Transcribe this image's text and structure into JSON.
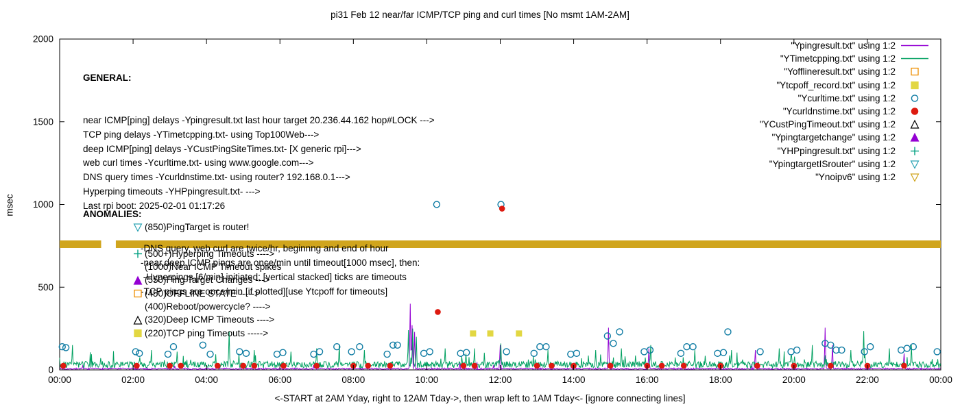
{
  "colors": {
    "purple": "#9400d3",
    "green": "#00a060",
    "orange": "#ef8f00",
    "yellow": "#e2d742",
    "blue": "#0e7ba3",
    "red": "#dd1a10",
    "black": "#000000",
    "teal": "#00a080",
    "cyan": "#2ba3b4",
    "gold": "#d0a51d"
  },
  "general": {
    "heading": "GENERAL:",
    "lines": [
      "near ICMP[ping] delays -Ypingresult.txt last hour target 20.236.44.162 hop#LOCK --->",
      "TCP ping delays -YTimetcpping.txt- using Top100Web--->",
      "deep ICMP[ping] delays -YCustPingSiteTimes.txt- [X generic rpi]--->",
      "web curl times -Ycurltime.txt- using www.google.com--->",
      "DNS query times -Ycurldnstime.txt- using router? 192.168.0.1--->",
      "Hyperping timeouts -YHPpingresult.txt- --->",
      "Last rpi boot: 2025-02-01 01:17:26"
    ],
    "indented_lines": [
      "-DNS query, web curl are twice/hr, beginnng and end of hour",
      "-near,deep ICMP pings are once/min until timeout[1000 msec], then:",
      " -Hyperpings [6/min] initiated; [vertical stacked] ticks are timeouts",
      "-TCP pings are once/min [if plotted][use Ytcpoff for timeouts]"
    ]
  },
  "anomalies": {
    "heading": "ANOMALIES:",
    "items": [
      {
        "marker": "triangle-down-open-teal",
        "label": "(850)PingTarget is router!"
      },
      {
        "marker": "none",
        "label": ""
      },
      {
        "marker": "plus-teal",
        "label": "(500+)Hyperping Timeouts ---->"
      },
      {
        "marker": "none",
        "label": "(1000)Near ICMP Timeout spikes"
      },
      {
        "marker": "triangle-filled-purple",
        "label": "(550)Ping Target Changes --->"
      },
      {
        "marker": "square-open-orange",
        "label": "(450)OFFLINE STATE ----->"
      },
      {
        "marker": "none",
        "label": "(400)Reboot/powercycle? ---->"
      },
      {
        "marker": "triangle-open-black",
        "label": "(320)Deep ICMP Timeouts ---->"
      },
      {
        "marker": "square-filled-yellow",
        "label": "(220)TCP ping Timeouts ----->"
      }
    ]
  },
  "legend": {
    "entries": [
      {
        "label": "\"Ypingresult.txt\" using 1:2",
        "marker": "line-purple"
      },
      {
        "label": "\"YTimetcpping.txt\" using 1:2",
        "marker": "line-green"
      },
      {
        "label": "\"Yofflineresult.txt\" using 1:2",
        "marker": "square-open-orange"
      },
      {
        "label": "\"Ytcpoff_record.txt\" using 1:2",
        "marker": "square-filled-yellow"
      },
      {
        "label": "\"Ycurltime.txt\" using 1:2",
        "marker": "circle-open-blue"
      },
      {
        "label": "\"Ycurldnstime.txt\" using 1:2",
        "marker": "circle-filled-red"
      },
      {
        "label": "\"YCustPingTimeout.txt\" using 1:2",
        "marker": "triangle-open-black"
      },
      {
        "label": "\"Ypingtargetchange\" using 1:2",
        "marker": "triangle-filled-purple"
      },
      {
        "label": "\"YHPpingresult.txt\" using 1:2",
        "marker": "plus-teal"
      },
      {
        "label": "\"YpingtargetISrouter\" using 1:2",
        "marker": "triangle-down-open-teal"
      },
      {
        "label": "\"Ynoipv6\" using 1:2",
        "marker": "triangle-down-open-gold"
      }
    ]
  },
  "chart_data": {
    "type": "line+scatter",
    "title": "pi31 Feb 12  near/far ICMP/TCP ping and curl times [No msmt 1AM-2AM]",
    "xlabel": "<-START at 2AM Yday, right to 12AM Tday->, then wrap left to 1AM Tday<- [ignore connecting lines]",
    "ylabel": "msec",
    "ylim": [
      0,
      2000
    ],
    "y_ticks": [
      0,
      500,
      1000,
      1500,
      2000
    ],
    "x_tick_hours": [
      0,
      2,
      4,
      6,
      8,
      10,
      12,
      14,
      16,
      18,
      20,
      22,
      24
    ],
    "x_ticks": [
      "00:00",
      "02:00",
      "04:00",
      "06:00",
      "08:00",
      "10:00",
      "12:00",
      "14:00",
      "16:00",
      "18:00",
      "20:00",
      "22:00",
      "00:00"
    ],
    "series": [
      {
        "name": "Ynoipv6",
        "type": "band",
        "color_key": "gold",
        "value": 760,
        "segments": [
          [
            0,
            1.13
          ],
          [
            1.53,
            24
          ]
        ]
      },
      {
        "name": "Ypingresult",
        "type": "line",
        "color_key": "purple",
        "baseline": 7,
        "jitter": 5,
        "seed": 7,
        "burst_prob": 0.008,
        "burst_amp": 40,
        "spikes": [
          [
            9.55,
            400
          ],
          [
            9.6,
            270
          ],
          [
            9.67,
            230
          ],
          [
            12.0,
            150
          ],
          [
            14.95,
            255
          ],
          [
            16.05,
            130
          ],
          [
            18.95,
            120
          ],
          [
            20.85,
            255
          ],
          [
            21.05,
            150
          ],
          [
            23.0,
            100
          ]
        ]
      },
      {
        "name": "YTimetcpping",
        "type": "line",
        "color_key": "green",
        "baseline": 32,
        "jitter": 20,
        "seed": 3,
        "burst_prob": 0.05,
        "burst_amp": 70,
        "spikes": [
          [
            0.35,
            150
          ],
          [
            2.5,
            120
          ],
          [
            3.2,
            110
          ],
          [
            4.62,
            235
          ],
          [
            5.3,
            120
          ],
          [
            6.3,
            110
          ],
          [
            7.0,
            130
          ],
          [
            7.62,
            150
          ],
          [
            8.3,
            120
          ],
          [
            9.5,
            240
          ],
          [
            9.62,
            250
          ],
          [
            9.72,
            200
          ],
          [
            10.5,
            130
          ],
          [
            11.3,
            130
          ],
          [
            12.02,
            160
          ],
          [
            13.3,
            120
          ],
          [
            14.6,
            120
          ],
          [
            15.3,
            130
          ],
          [
            16.1,
            150
          ],
          [
            17.3,
            120
          ],
          [
            18.3,
            120
          ],
          [
            19.6,
            130
          ],
          [
            20.5,
            150
          ],
          [
            21.55,
            120
          ],
          [
            21.9,
            235
          ],
          [
            22.6,
            130
          ],
          [
            23.2,
            150
          ]
        ]
      },
      {
        "name": "Ytcpoff_record",
        "type": "scatter",
        "marker": "square-filled",
        "color_key": "yellow",
        "points": [
          [
            11.26,
            220
          ],
          [
            11.73,
            220
          ],
          [
            12.51,
            220
          ]
        ]
      },
      {
        "name": "Ycurltime",
        "type": "scatter",
        "marker": "circle-open",
        "color_key": "blue",
        "points": [
          [
            0.07,
            140
          ],
          [
            0.17,
            135
          ],
          [
            2.07,
            110
          ],
          [
            2.17,
            100
          ],
          [
            2.95,
            95
          ],
          [
            3.1,
            140
          ],
          [
            3.9,
            150
          ],
          [
            4.1,
            95
          ],
          [
            4.9,
            110
          ],
          [
            5.08,
            100
          ],
          [
            5.92,
            95
          ],
          [
            6.08,
            105
          ],
          [
            6.92,
            95
          ],
          [
            7.08,
            110
          ],
          [
            7.55,
            140
          ],
          [
            7.95,
            110
          ],
          [
            8.17,
            140
          ],
          [
            8.92,
            95
          ],
          [
            9.08,
            150
          ],
          [
            9.2,
            150
          ],
          [
            9.92,
            100
          ],
          [
            10.08,
            110
          ],
          [
            10.27,
            1000
          ],
          [
            10.92,
            100
          ],
          [
            11.08,
            105
          ],
          [
            12.02,
            1000
          ],
          [
            12.17,
            110
          ],
          [
            12.92,
            100
          ],
          [
            13.08,
            140
          ],
          [
            13.25,
            140
          ],
          [
            13.92,
            95
          ],
          [
            14.08,
            100
          ],
          [
            14.92,
            205
          ],
          [
            15.08,
            160
          ],
          [
            15.25,
            230
          ],
          [
            15.92,
            110
          ],
          [
            16.08,
            120
          ],
          [
            16.92,
            100
          ],
          [
            17.08,
            140
          ],
          [
            17.25,
            140
          ],
          [
            17.92,
            100
          ],
          [
            18.08,
            105
          ],
          [
            18.2,
            230
          ],
          [
            19.08,
            110
          ],
          [
            19.92,
            110
          ],
          [
            20.08,
            120
          ],
          [
            20.85,
            160
          ],
          [
            21.0,
            150
          ],
          [
            21.15,
            120
          ],
          [
            21.3,
            120
          ],
          [
            21.92,
            110
          ],
          [
            22.08,
            140
          ],
          [
            22.92,
            120
          ],
          [
            23.08,
            130
          ],
          [
            23.25,
            140
          ],
          [
            23.9,
            110
          ]
        ]
      },
      {
        "name": "Ycurldnstime",
        "type": "scatter",
        "marker": "circle-filled",
        "color_key": "red",
        "points": [
          [
            0.1,
            25
          ],
          [
            2.1,
            25
          ],
          [
            3.0,
            25
          ],
          [
            3.3,
            25
          ],
          [
            4.3,
            25
          ],
          [
            5.0,
            25
          ],
          [
            5.3,
            25
          ],
          [
            6.1,
            25
          ],
          [
            7.0,
            25
          ],
          [
            8.0,
            25
          ],
          [
            8.4,
            25
          ],
          [
            9.0,
            25
          ],
          [
            10.3,
            350
          ],
          [
            11.0,
            25
          ],
          [
            11.3,
            25
          ],
          [
            12.05,
            975
          ],
          [
            13.0,
            25
          ],
          [
            13.4,
            25
          ],
          [
            14.0,
            25
          ],
          [
            15.0,
            25
          ],
          [
            16.0,
            25
          ],
          [
            16.4,
            25
          ],
          [
            17.0,
            25
          ],
          [
            18.0,
            25
          ],
          [
            19.0,
            25
          ],
          [
            20.0,
            25
          ],
          [
            21.0,
            25
          ],
          [
            22.0,
            25
          ],
          [
            23.0,
            25
          ]
        ]
      }
    ]
  }
}
